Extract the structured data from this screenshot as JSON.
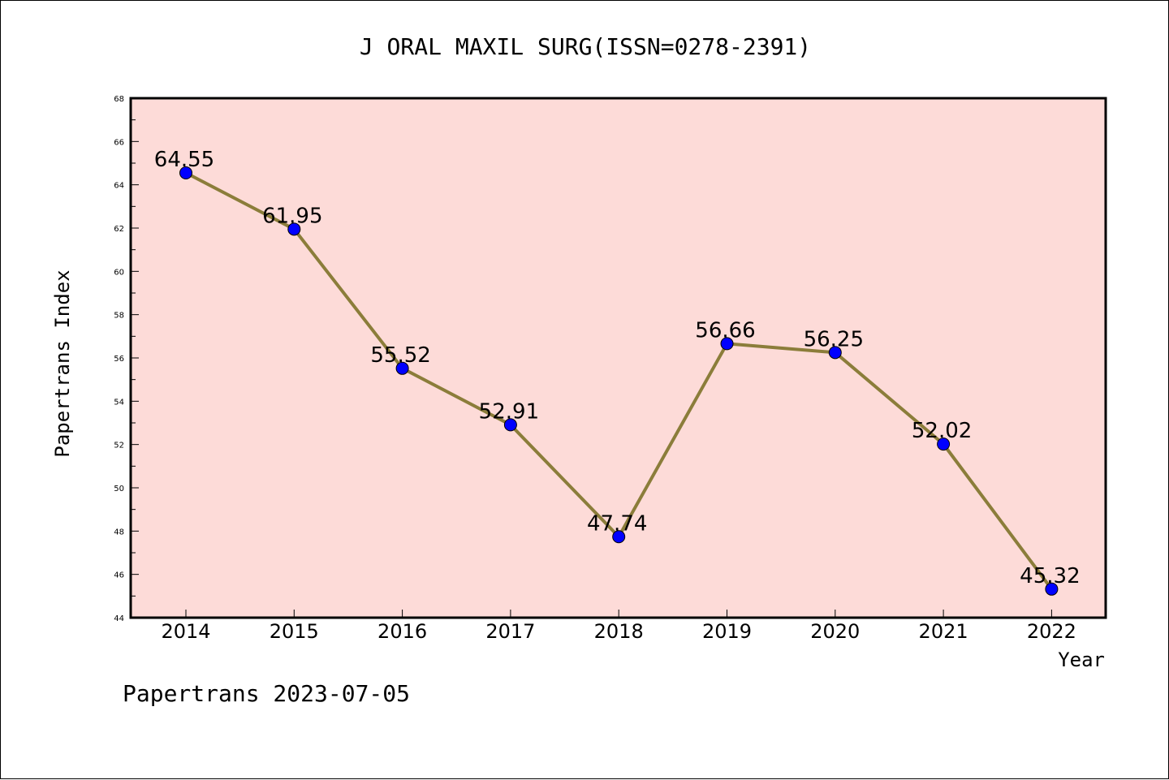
{
  "chart_data": {
    "type": "line",
    "title": "J ORAL MAXIL SURG(ISSN=0278-2391)",
    "xlabel": "Year",
    "ylabel": "Papertrans Index",
    "categories": [
      "2014",
      "2015",
      "2016",
      "2017",
      "2018",
      "2019",
      "2020",
      "2021",
      "2022"
    ],
    "values": [
      64.55,
      61.95,
      55.52,
      52.91,
      47.74,
      56.66,
      56.25,
      52.02,
      45.32
    ],
    "data_labels": [
      "64.55",
      "61.95",
      "55.52",
      "52.91",
      "47.74",
      "56.66",
      "56.25",
      "52.02",
      "45.32"
    ],
    "ylim": [
      44,
      68
    ],
    "yticks": [
      "44",
      "46",
      "48",
      "50",
      "52",
      "54",
      "56",
      "58",
      "60",
      "62",
      "64",
      "66",
      "68"
    ],
    "grid": false,
    "legend": "none",
    "colors": {
      "plot_background": "#fddbd8",
      "line": "#8b7d3a",
      "marker": "#0000ff",
      "frame": "#000000"
    }
  },
  "footer": "Papertrans 2023-07-05"
}
